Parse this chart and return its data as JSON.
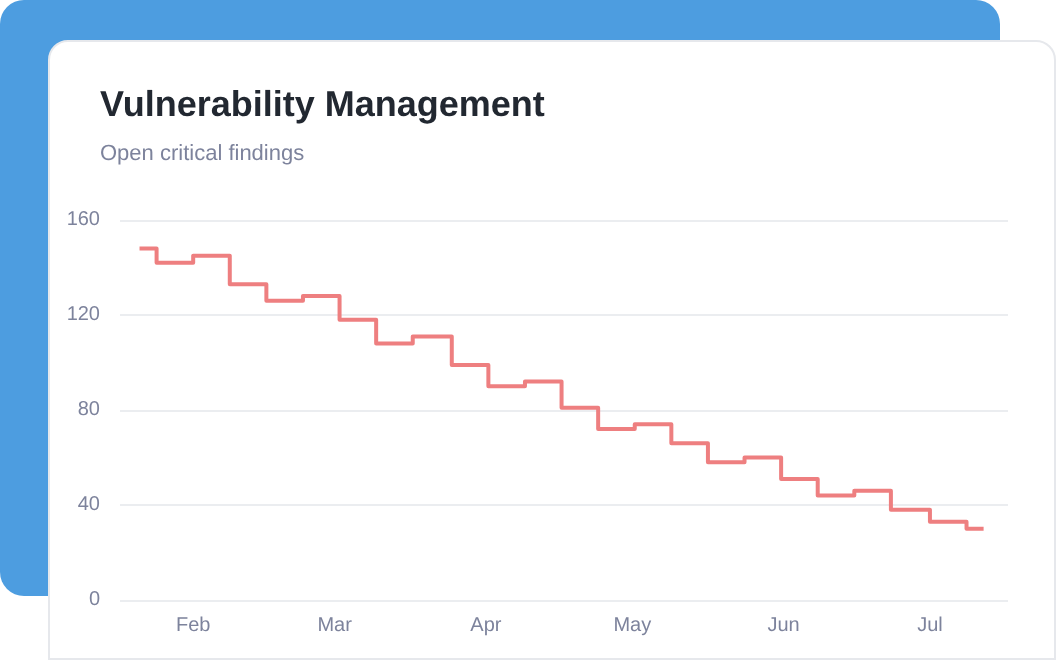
{
  "chart_data": {
    "type": "step",
    "title": "Vulnerability Management",
    "subtitle": "Open critical findings",
    "x": [
      "--01-21",
      "--01-28",
      "--02-05",
      "--02-12",
      "--02-20",
      "--02-27",
      "--03-06",
      "--03-13",
      "--03-21",
      "--03-29",
      "--04-05",
      "--04-13",
      "--04-20",
      "--04-28",
      "--05-05",
      "--05-13",
      "--05-20",
      "--05-28",
      "--06-04",
      "--06-12",
      "--06-19",
      "--06-27",
      "--07-05",
      "--07-12"
    ],
    "series": [
      {
        "color": "#ee7f80",
        "values": [
          148,
          142,
          145,
          133,
          126,
          128,
          118,
          108,
          111,
          99,
          90,
          92,
          81,
          72,
          74,
          66,
          58,
          60,
          51,
          44,
          46,
          38,
          33,
          30
        ]
      }
    ],
    "xlim": [
      "--01-17",
      "--07-17"
    ],
    "xticks": [
      {
        "value": "--02-01",
        "label": "Feb"
      },
      {
        "value": "--03-01",
        "label": "Mar"
      },
      {
        "value": "--04-01",
        "label": "Apr"
      },
      {
        "value": "--05-01",
        "label": "May"
      },
      {
        "value": "--06-01",
        "label": "Jun"
      },
      {
        "value": "--07-01",
        "label": "Jul"
      }
    ],
    "ylim": [
      0,
      160
    ],
    "yticks": [
      0,
      40,
      80,
      120,
      160
    ],
    "grid": "y",
    "marker": "none",
    "line_style": "solid"
  }
}
